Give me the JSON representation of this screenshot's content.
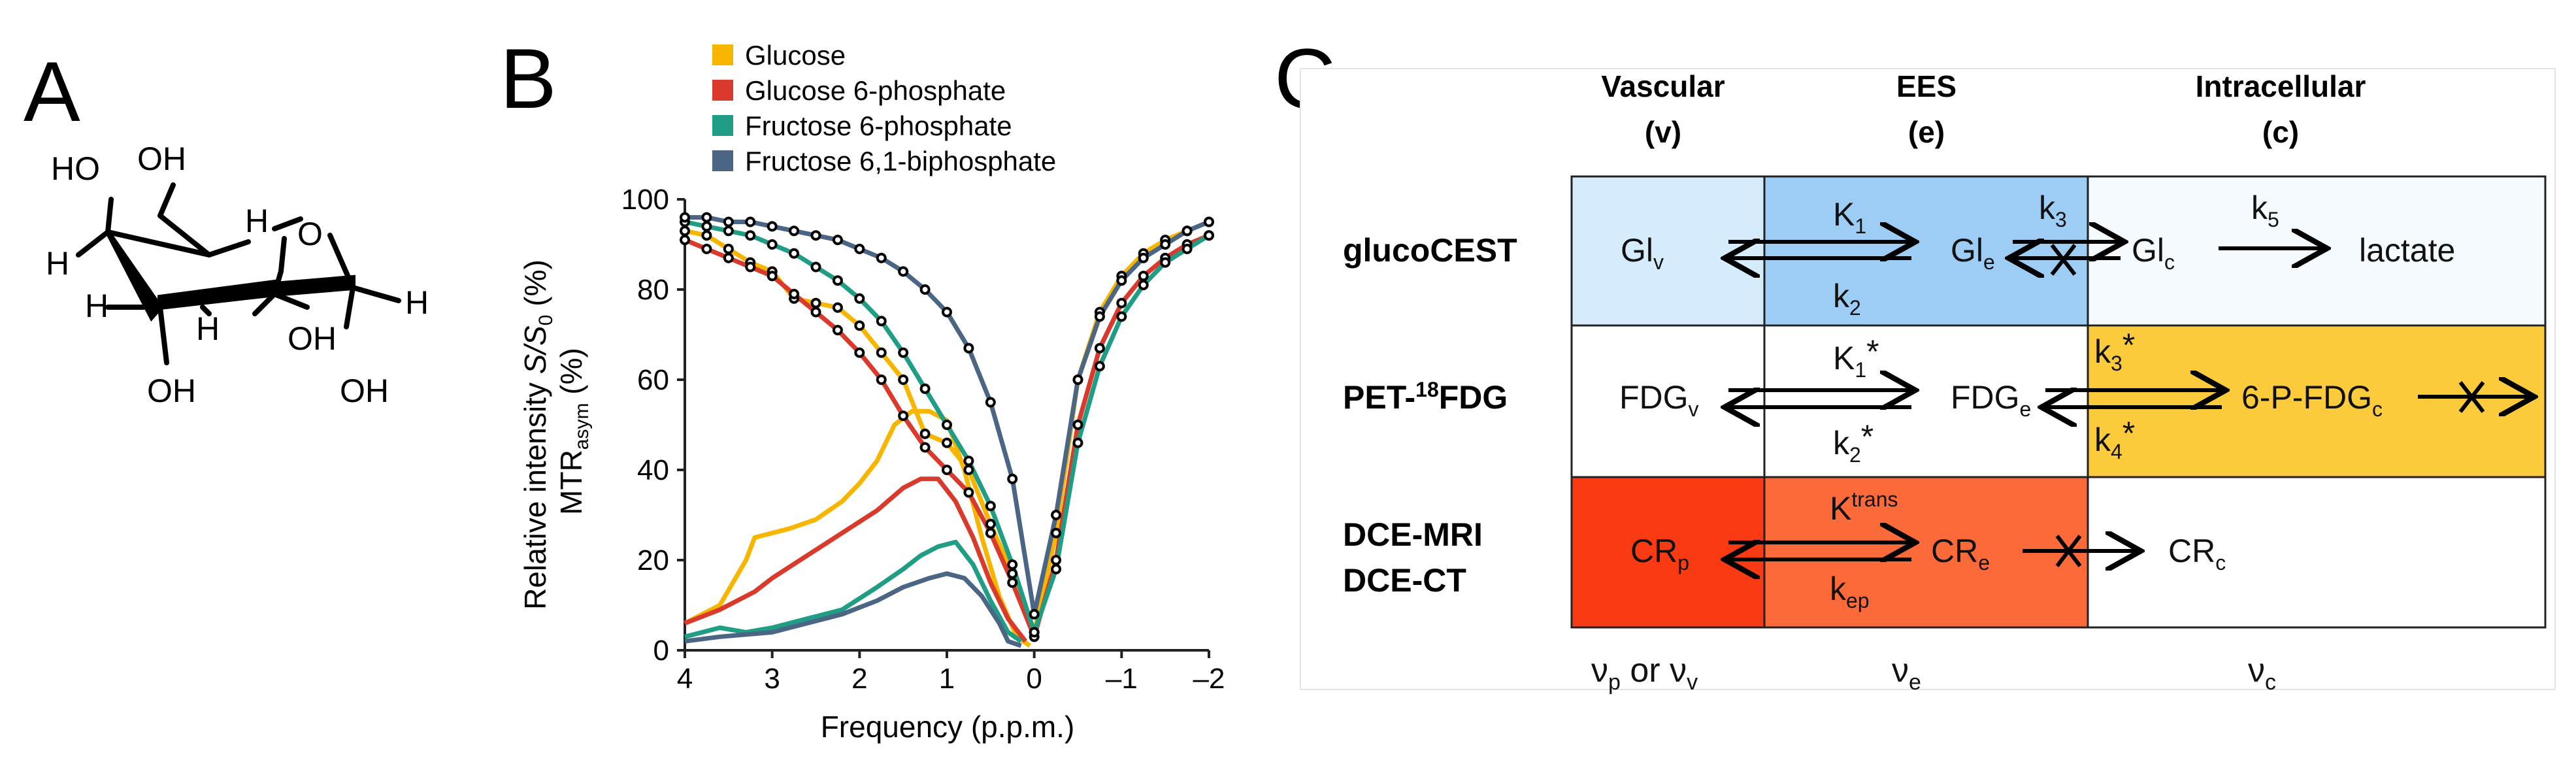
{
  "panels": {
    "a": "A",
    "b": "B",
    "c": "C"
  },
  "structure": {
    "labels": [
      "HO",
      "OH",
      "H",
      "O",
      "H",
      "H",
      "H",
      "OH",
      "H",
      "OH",
      "OH"
    ]
  },
  "chart_data": {
    "type": "line",
    "legend": [
      "Glucose",
      "Glucose 6-phosphate",
      "Fructose 6-phosphate",
      "Fructose 6,1-biphosphate"
    ],
    "xlabel": "Frequency (p.p.m.)",
    "ylabel_main": "Relative intensity ",
    "ylabel_italic": "S/S",
    "ylabel_sub": "0",
    "ylabel_end": " (%)",
    "y2label_pre": "MTR",
    "y2label_sub": "asym",
    "y2label_end": " (%)",
    "xlim": [
      4,
      -2
    ],
    "ylim": [
      0,
      100
    ],
    "xticks": [
      4,
      3,
      2,
      1,
      0,
      -1,
      -2
    ],
    "xtick_labels": [
      "4",
      "3",
      "2",
      "1",
      "0",
      "–1",
      "–2"
    ],
    "yticks": [
      0,
      20,
      40,
      60,
      80,
      100
    ],
    "colors": [
      "#F7B500",
      "#D93A2B",
      "#1F9E85",
      "#4B6585"
    ],
    "z_spectra": [
      {
        "name": "Glucose",
        "x": [
          4,
          3.75,
          3.5,
          3.25,
          3,
          2.75,
          2.5,
          2.25,
          2,
          1.75,
          1.5,
          1.25,
          1,
          0.75,
          0.5,
          0.25,
          0,
          -0.25,
          -0.5,
          -0.75,
          -1,
          -1.25,
          -1.5,
          -1.75,
          -2
        ],
        "y": [
          93,
          92,
          89,
          86,
          84,
          78,
          77,
          76,
          72,
          66,
          60,
          48,
          46,
          40,
          28,
          17,
          4,
          26,
          60,
          75,
          83,
          88,
          91,
          93,
          95
        ]
      },
      {
        "name": "Glucose 6-phosphate",
        "x": [
          4,
          3.75,
          3.5,
          3.25,
          3,
          2.75,
          2.5,
          2.25,
          2,
          1.75,
          1.5,
          1.25,
          1,
          0.75,
          0.5,
          0.25,
          0,
          -0.25,
          -0.5,
          -0.75,
          -1,
          -1.25,
          -1.5,
          -1.75,
          -2
        ],
        "y": [
          91,
          89,
          87,
          85,
          83,
          79,
          75,
          71,
          66,
          60,
          52,
          45,
          40,
          35,
          26,
          15,
          3,
          20,
          50,
          67,
          77,
          83,
          87,
          90,
          92
        ]
      },
      {
        "name": "Fructose 6-phosphate",
        "x": [
          4,
          3.75,
          3.5,
          3.25,
          3,
          2.75,
          2.5,
          2.25,
          2,
          1.75,
          1.5,
          1.25,
          1,
          0.75,
          0.5,
          0.25,
          0,
          -0.25,
          -0.5,
          -0.75,
          -1,
          -1.25,
          -1.5,
          -1.75,
          -2
        ],
        "y": [
          95,
          94,
          93,
          92,
          90,
          88,
          85,
          82,
          78,
          73,
          66,
          58,
          50,
          42,
          32,
          19,
          4,
          18,
          46,
          63,
          74,
          81,
          86,
          89,
          92
        ]
      },
      {
        "name": "Fructose 6,1-biphosphate",
        "x": [
          4,
          3.75,
          3.5,
          3.25,
          3,
          2.75,
          2.5,
          2.25,
          2,
          1.75,
          1.5,
          1.25,
          1,
          0.75,
          0.5,
          0.25,
          0,
          -0.25,
          -0.5,
          -0.75,
          -1,
          -1.25,
          -1.5,
          -1.75,
          -2
        ],
        "y": [
          96,
          96,
          95,
          95,
          94,
          93,
          92,
          91,
          89,
          87,
          84,
          80,
          75,
          67,
          55,
          38,
          8,
          30,
          60,
          74,
          82,
          87,
          90,
          93,
          95
        ]
      }
    ],
    "mtr_asym": [
      {
        "name": "Glucose",
        "x": [
          4,
          3.6,
          3.3,
          3.2,
          3.0,
          2.8,
          2.5,
          2.2,
          2.0,
          1.8,
          1.6,
          1.4,
          1.2,
          1.0,
          0.8,
          0.6,
          0.4,
          0.2,
          0.05
        ],
        "y": [
          6,
          10,
          20,
          25,
          26,
          27,
          29,
          33,
          37,
          42,
          50,
          53,
          53,
          51,
          40,
          25,
          12,
          3,
          1
        ]
      },
      {
        "name": "Glucose 6-phosphate",
        "x": [
          4,
          3.6,
          3.2,
          3.0,
          2.6,
          2.2,
          1.8,
          1.5,
          1.3,
          1.1,
          0.9,
          0.7,
          0.5,
          0.3,
          0.1
        ],
        "y": [
          6,
          9,
          13,
          16,
          21,
          26,
          31,
          36,
          38,
          38,
          33,
          25,
          15,
          7,
          2
        ]
      },
      {
        "name": "Fructose 6-phosphate",
        "x": [
          4,
          3.6,
          3.3,
          3.0,
          2.6,
          2.2,
          1.8,
          1.5,
          1.3,
          1.1,
          0.9,
          0.7,
          0.5,
          0.3,
          0.15
        ],
        "y": [
          3,
          5,
          4,
          5,
          7,
          9,
          14,
          18,
          21,
          23,
          24,
          19,
          11,
          4,
          2
        ]
      },
      {
        "name": "Fructose 6,1-biphosphate",
        "x": [
          4,
          3.6,
          3.0,
          2.6,
          2.2,
          1.8,
          1.5,
          1.2,
          1.0,
          0.8,
          0.6,
          0.4,
          0.3,
          0.15
        ],
        "y": [
          2,
          3,
          4,
          6,
          8,
          11,
          14,
          16,
          17,
          16,
          12,
          6,
          2,
          1
        ]
      }
    ]
  },
  "model": {
    "columns": [
      {
        "name": "Vascular",
        "sym": "(v)"
      },
      {
        "name": "EES",
        "sym": "(e)"
      },
      {
        "name": "Intracellular",
        "sym": "(c)"
      }
    ],
    "rows": [
      {
        "label": "glucoCEST"
      },
      {
        "label_pre": "PET-",
        "label_sup": "18",
        "label_post": "FDG"
      },
      {
        "label_line1": "DCE-MRI",
        "label_line2": "DCE-CT"
      }
    ],
    "gluco": {
      "v": "Gl",
      "v_sub": "v",
      "e": "Gl",
      "e_sub": "e",
      "c": "Gl",
      "c_sub": "c",
      "lactate": "lactate",
      "k1": "K",
      "k1_sub": "1",
      "k2": "k",
      "k2_sub": "2",
      "k3": "k",
      "k3_sub": "3",
      "k5": "k",
      "k5_sub": "5"
    },
    "pet": {
      "v": "FDG",
      "v_sub": "v",
      "e": "FDG",
      "e_sub": "e",
      "c": "6-P-FDG",
      "c_sub": "c",
      "k1": "K",
      "k1_sub": "1",
      "k1_sup": "*",
      "k2": "k",
      "k2_sub": "2",
      "k2_sup": "*",
      "k3": "k",
      "k3_sub": "3",
      "k3_sup": "*",
      "k4": "k",
      "k4_sub": "4",
      "k4_sup": "*"
    },
    "dce": {
      "p": "CR",
      "p_sub": "p",
      "e": "CR",
      "e_sub": "e",
      "c": "CR",
      "c_sub": "c",
      "ktrans": "K",
      "ktrans_sup": "trans",
      "kep": "k",
      "kep_sub": "ep"
    },
    "footer": {
      "v": "ν",
      "v_sub1": "p",
      "v_or": " or ",
      "v_sub2": "v",
      "e": "ν",
      "e_sub": "e",
      "c": "ν",
      "c_sub": "c"
    },
    "colors": {
      "gluco_v": "#D4ECFB",
      "gluco_e": "#9DCDF4",
      "gluco_c": "#F4FAFD",
      "pet_c": "#FCCB3C",
      "dce_v": "#FA3A13",
      "dce_e": "#FD6A3A"
    }
  }
}
